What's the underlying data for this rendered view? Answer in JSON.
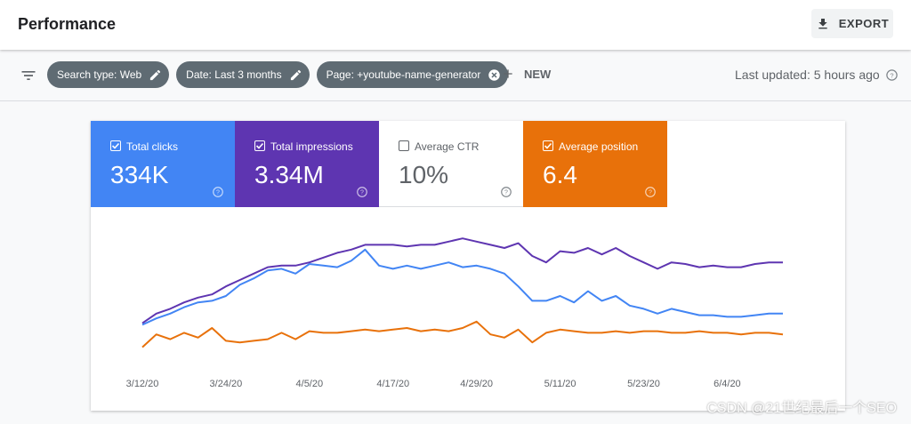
{
  "header": {
    "title": "Performance",
    "export": "EXPORT"
  },
  "filters": {
    "chips": [
      {
        "label": "Search type: Web",
        "action": "edit"
      },
      {
        "label": "Date: Last 3 months",
        "action": "edit"
      },
      {
        "label": "Page: +youtube-name-generator",
        "action": "remove"
      }
    ],
    "new": "NEW",
    "last_updated": "Last updated: 5 hours ago"
  },
  "metrics": [
    {
      "label": "Total clicks",
      "value": "334K",
      "checked": true,
      "color": "#4285f4"
    },
    {
      "label": "Total impressions",
      "value": "3.34M",
      "checked": true,
      "color": "#5e35b1"
    },
    {
      "label": "Average CTR",
      "value": "10%",
      "checked": false,
      "color": "#ffffff"
    },
    {
      "label": "Average position",
      "value": "6.4",
      "checked": true,
      "color": "#e8710a"
    }
  ],
  "chart_data": {
    "type": "line",
    "categories": [
      "3/12/20",
      null,
      null,
      null,
      null,
      null,
      "3/24/20",
      null,
      null,
      null,
      null,
      null,
      "4/5/20",
      null,
      null,
      null,
      null,
      null,
      "4/17/20",
      null,
      null,
      null,
      null,
      null,
      "4/29/20",
      null,
      null,
      null,
      null,
      null,
      "5/11/20",
      null,
      null,
      null,
      null,
      null,
      "5/23/20",
      null,
      null,
      null,
      null,
      null,
      "6/4/20",
      null,
      null,
      null,
      null
    ],
    "ylim": [
      0,
      100
    ],
    "series": [
      {
        "name": "Total impressions",
        "color": "#5e35b1",
        "values": [
          33,
          39,
          42,
          46,
          49,
          51,
          56,
          60,
          64,
          68,
          69,
          69,
          71,
          74,
          77,
          79,
          82,
          82,
          82,
          81,
          82,
          82,
          84,
          86,
          84,
          82,
          80,
          83,
          75,
          71,
          78,
          77,
          80,
          76,
          80,
          75,
          71,
          67,
          71,
          70,
          68,
          69,
          68,
          68,
          70,
          71,
          71
        ]
      },
      {
        "name": "Total clicks",
        "color": "#4285f4",
        "values": [
          32,
          36,
          39,
          43,
          46,
          47,
          50,
          57,
          61,
          66,
          67,
          64,
          70,
          69,
          68,
          72,
          79,
          69,
          67,
          69,
          67,
          69,
          71,
          68,
          69,
          67,
          64,
          56,
          47,
          47,
          50,
          46,
          53,
          47,
          50,
          44,
          42,
          39,
          42,
          40,
          38,
          38,
          37,
          37,
          38,
          39,
          39
        ]
      },
      {
        "name": "Average position",
        "color": "#e8710a",
        "values": [
          18,
          26,
          23,
          27,
          24,
          30,
          22,
          21,
          22,
          23,
          27,
          23,
          28,
          27,
          27,
          28,
          29,
          28,
          29,
          30,
          28,
          29,
          28,
          30,
          34,
          26,
          24,
          29,
          21,
          27,
          29,
          28,
          27,
          27,
          28,
          27,
          28,
          28,
          27,
          27,
          28,
          27,
          27,
          26,
          27,
          27,
          26
        ]
      }
    ]
  },
  "watermark": "CSDN @21世纪最后一个SEO"
}
